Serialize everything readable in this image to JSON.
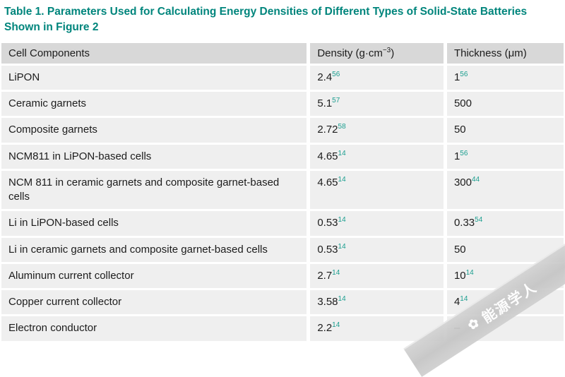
{
  "title": "Table 1.  Parameters Used for Calculating Energy Densities of Different Types of Solid-State Batteries Shown in Figure 2",
  "colors": {
    "accent_teal": "#00857C",
    "ref_teal": "#1B9E8F",
    "header_bg": "#D8D8D8",
    "row_bg": "#EFEFEF"
  },
  "table": {
    "headers": {
      "component": "Cell Components",
      "density_prefix": "Density (g·cm",
      "density_sup": "−3",
      "density_suffix": ")",
      "thickness": "Thickness (μm)"
    },
    "rows": [
      {
        "component": "LiPON",
        "density": "2.4",
        "density_ref": "56",
        "thickness": "1",
        "thickness_ref": "56"
      },
      {
        "component": "Ceramic garnets",
        "density": "5.1",
        "density_ref": "57",
        "thickness": "500",
        "thickness_ref": ""
      },
      {
        "component": "Composite garnets",
        "density": "2.72",
        "density_ref": "58",
        "thickness": "50",
        "thickness_ref": ""
      },
      {
        "component": "NCM811 in LiPON-based cells",
        "density": "4.65",
        "density_ref": "14",
        "thickness": "1",
        "thickness_ref": "56"
      },
      {
        "component": "NCM 811 in ceramic garnets and composite garnet-based cells",
        "density": "4.65",
        "density_ref": "14",
        "thickness": "300",
        "thickness_ref": "44"
      },
      {
        "component": "Li in LiPON-based cells",
        "density": "0.53",
        "density_ref": "14",
        "thickness": "0.33",
        "thickness_ref": "54"
      },
      {
        "component": "Li in ceramic garnets and composite garnet-based cells",
        "density": "0.53",
        "density_ref": "14",
        "thickness": "50",
        "thickness_ref": ""
      },
      {
        "component": "Aluminum current collector",
        "density": "2.7",
        "density_ref": "14",
        "thickness": "10",
        "thickness_ref": "14"
      },
      {
        "component": "Copper current collector",
        "density": "3.58",
        "density_ref": "14",
        "thickness": "4",
        "thickness_ref": "14"
      },
      {
        "component": "Electron conductor",
        "density": "2.2",
        "density_ref": "14",
        "thickness": "–",
        "thickness_ref": ""
      }
    ]
  },
  "watermark": {
    "text": "能源学人",
    "logo_glyph": "✿"
  }
}
